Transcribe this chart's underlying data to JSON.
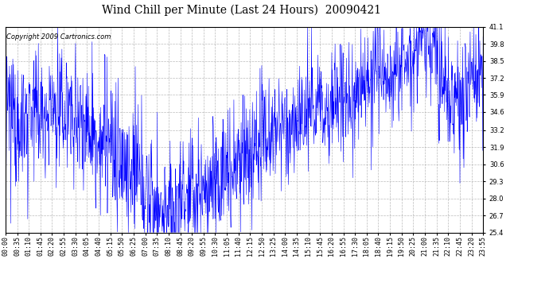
{
  "title": "Wind Chill per Minute (Last 24 Hours)  20090421",
  "copyright_text": "Copyright 2009 Cartronics.com",
  "line_color": "#0000FF",
  "bg_color": "#FFFFFF",
  "plot_bg_color": "#FFFFFF",
  "grid_color": "#AAAAAA",
  "yticks": [
    25.4,
    26.7,
    28.0,
    29.3,
    30.6,
    31.9,
    33.2,
    34.6,
    35.9,
    37.2,
    38.5,
    39.8,
    41.1
  ],
  "ymin": 25.4,
  "ymax": 41.1,
  "xtick_labels": [
    "00:00",
    "00:35",
    "01:10",
    "01:45",
    "02:20",
    "02:55",
    "03:30",
    "04:05",
    "04:40",
    "05:15",
    "05:50",
    "06:25",
    "07:00",
    "07:35",
    "08:10",
    "08:45",
    "09:20",
    "09:55",
    "10:30",
    "11:05",
    "11:40",
    "12:15",
    "12:50",
    "13:25",
    "14:00",
    "14:35",
    "15:10",
    "15:45",
    "16:20",
    "16:55",
    "17:30",
    "18:05",
    "18:40",
    "19:15",
    "19:50",
    "20:25",
    "21:00",
    "21:35",
    "22:10",
    "22:45",
    "23:20",
    "23:55"
  ],
  "num_minutes": 1440,
  "figwidth": 6.9,
  "figheight": 3.75,
  "dpi": 100,
  "title_fontsize": 10,
  "tick_fontsize": 6,
  "copyright_fontsize": 6
}
